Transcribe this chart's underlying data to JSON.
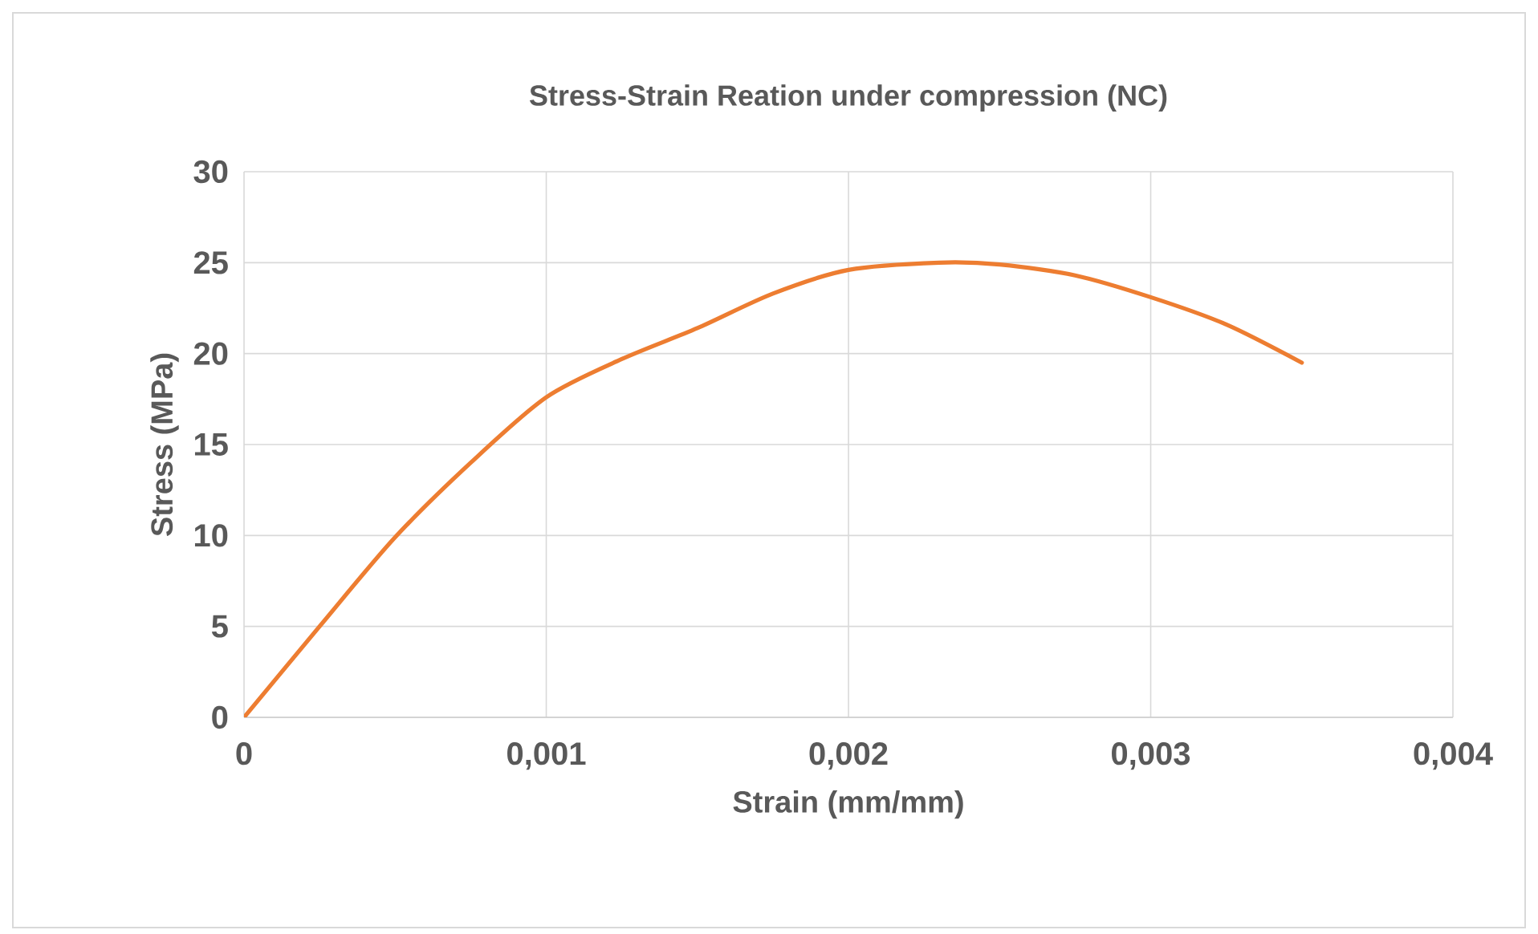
{
  "chart_data": {
    "type": "line",
    "title": "Stress-Strain Reation under compression (NC)",
    "xlabel": "Strain (mm/mm)",
    "ylabel": "Stress (MPa)",
    "series": [
      {
        "color": "#ed7d31",
        "x": [
          0,
          0.00025,
          0.0005,
          0.00075,
          0.001,
          0.00125,
          0.0015,
          0.00175,
          0.002,
          0.0023,
          0.0025,
          0.00275,
          0.003,
          0.00325,
          0.0035
        ],
        "values": [
          0,
          5.0,
          9.9,
          14.0,
          17.6,
          19.7,
          21.4,
          23.3,
          24.6,
          25.0,
          24.9,
          24.3,
          23.1,
          21.6,
          19.5
        ]
      }
    ],
    "xlim": [
      0,
      0.004
    ],
    "ylim": [
      0,
      30
    ],
    "xticks": [
      0,
      {
        "value": 0.001,
        "label": "0,001"
      },
      {
        "value": 0.002,
        "label": "0,002"
      },
      {
        "value": 0.003,
        "label": "0,003"
      },
      {
        "value": 0.004,
        "label": "0,004"
      }
    ],
    "yticks": [
      0,
      5,
      10,
      15,
      20,
      25,
      30
    ],
    "grid": true
  }
}
